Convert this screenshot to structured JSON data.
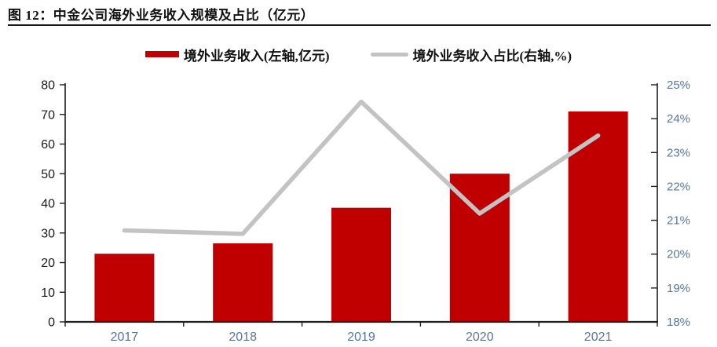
{
  "figure": {
    "title": "图 12：中金公司海外业务收入规模及占比（亿元）"
  },
  "legend": {
    "items": [
      {
        "label": "境外业务收入(左轴,亿元)",
        "swatch": "bar",
        "color": "#c00000"
      },
      {
        "label": "境外业务收入占比(右轴,%)",
        "swatch": "line",
        "color": "#c3c3c3"
      }
    ]
  },
  "colors": {
    "bar_red": "#c00000",
    "line_gray": "#c3c3c3",
    "axis_line": "#1f1f1f",
    "left_tick_text": "#1a1a1a",
    "right_tick_text": "#5677a3",
    "x_tick_text": "#5677a3",
    "divider": "#1a1a1a",
    "background": "#ffffff"
  },
  "chart_data": {
    "type": "bar",
    "subtype": "bar+line dual axis",
    "title": "中金公司海外业务收入规模及占比（亿元）",
    "categories": [
      "2017",
      "2018",
      "2019",
      "2020",
      "2021"
    ],
    "series": [
      {
        "name": "境外业务收入(左轴,亿元)",
        "type": "bar",
        "axis": "left",
        "color": "#c00000",
        "values": [
          23,
          26.5,
          38.5,
          50,
          71
        ]
      },
      {
        "name": "境外业务收入占比(右轴,%)",
        "type": "line",
        "axis": "right",
        "color": "#c3c3c3",
        "values": [
          20.7,
          20.6,
          24.5,
          21.2,
          23.5
        ]
      }
    ],
    "left_axis": {
      "min": 0,
      "max": 80,
      "step": 10,
      "ticks": [
        "0",
        "10",
        "20",
        "30",
        "40",
        "50",
        "60",
        "70",
        "80"
      ]
    },
    "right_axis": {
      "min": 18,
      "max": 25,
      "step": 1,
      "ticks": [
        "18%",
        "19%",
        "20%",
        "21%",
        "22%",
        "23%",
        "24%",
        "25%"
      ]
    },
    "grid": false,
    "legend_position": "top"
  }
}
